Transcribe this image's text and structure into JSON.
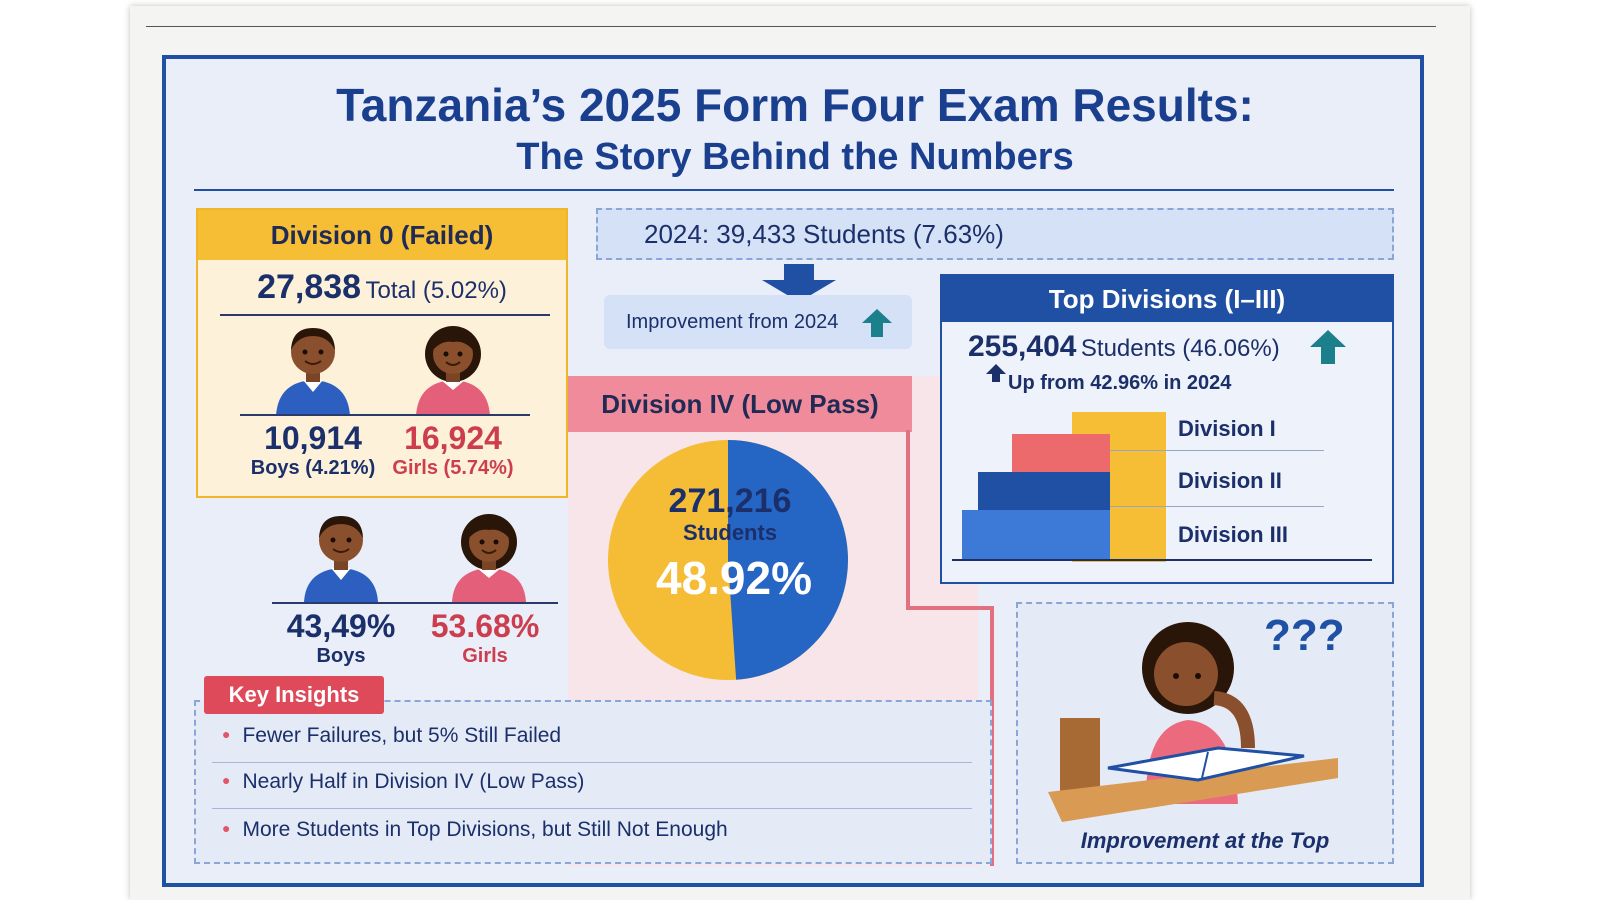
{
  "title": "Tanzania’s 2025 Form Four Exam Results:",
  "subtitle": "The Story Behind the Numbers",
  "division0": {
    "header": "Division 0 (Failed)",
    "total_value": "27,838",
    "total_label": "Total (5.02%)",
    "boys_value": "10,914",
    "boys_label": "Boys (4.21%)",
    "girls_value": "16,924",
    "girls_label": "Girls (5.74%)"
  },
  "comparison2024": {
    "text": "2024: 39,433 Students (7.63%)",
    "improvement": "Improvement from 2024"
  },
  "division4": {
    "header": "Division IV (Low Pass)",
    "students_value": "271,216",
    "students_label": "Students",
    "percent": "48.92%",
    "pie_fraction": 0.4892,
    "boys_percent": "43,49%",
    "boys_label": "Boys",
    "girls_percent": "53.68%",
    "girls_label": "Girls"
  },
  "top_divisions": {
    "header": "Top Divisions (I–III)",
    "students": "255,404",
    "students_label": "Students (46.06%)",
    "up_text": "Up from 42.96% in 2024",
    "labels": [
      "Division I",
      "Division II",
      "Division III"
    ]
  },
  "study": {
    "caption": "Improvement at the Top",
    "question": "???"
  },
  "insights": {
    "header": "Key Insights",
    "items": [
      "Fewer Failures, but 5% Still Failed",
      "Nearly Half in Division IV (Low Pass)",
      "More Students in Top Divisions, but Still Not Enough"
    ]
  },
  "colors": {
    "brand_blue": "#1f50a3",
    "yellow": "#f6be35",
    "pink": "#f08b9b",
    "red": "#de4a59"
  }
}
